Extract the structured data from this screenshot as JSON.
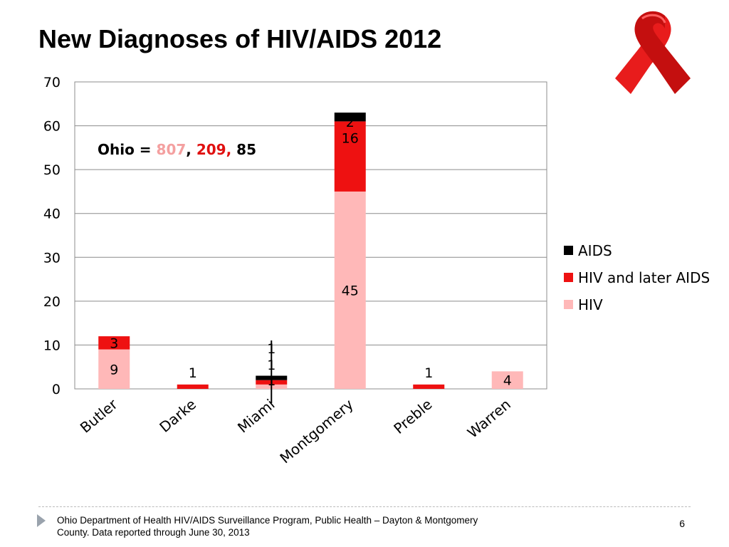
{
  "slide": {
    "title": "New Diagnoses of HIV/AIDS 2012",
    "footer": "Ohio Department of Health HIV/AIDS Surveillance Program, Public Health – Dayton & Montgomery County.  Data reported through June 30, 2013",
    "page_number": "6",
    "decoration_icon": "red-ribbon-icon"
  },
  "annotation": {
    "prefix": "Ohio = ",
    "v1": "807",
    "sep1": ", ",
    "v2": "209,",
    "sep2": " ",
    "v3": "85",
    "colors": {
      "v1": "#f4a0a0",
      "v2": "#e01010",
      "v3": "#000000"
    }
  },
  "chart_data": {
    "type": "bar",
    "stacked": true,
    "categories": [
      "Butler",
      "Darke",
      "Miami",
      "Montgomery",
      "Preble",
      "Warren"
    ],
    "series": [
      {
        "name": "HIV",
        "color": "#ffb8b8",
        "values": [
          9,
          0,
          1,
          45,
          0,
          4
        ],
        "labels": [
          "9",
          "",
          "1",
          "45",
          "",
          "4"
        ]
      },
      {
        "name": "HIV and later AIDS",
        "color": "#ee1111",
        "values": [
          3,
          1,
          1,
          16,
          1,
          0
        ],
        "labels": [
          "3",
          "1",
          "1",
          "16",
          "1",
          ""
        ]
      },
      {
        "name": "AIDS",
        "color": "#000000",
        "values": [
          0,
          0,
          1,
          2,
          0,
          0
        ],
        "labels": [
          "",
          "",
          "1",
          "2",
          "",
          ""
        ]
      }
    ],
    "legend_order": [
      "AIDS",
      "HIV and later AIDS",
      "HIV"
    ],
    "ylim": [
      0,
      70
    ],
    "yticks": [
      0,
      10,
      20,
      30,
      40,
      50,
      60,
      70
    ],
    "grid": true,
    "legend_position": "right"
  }
}
